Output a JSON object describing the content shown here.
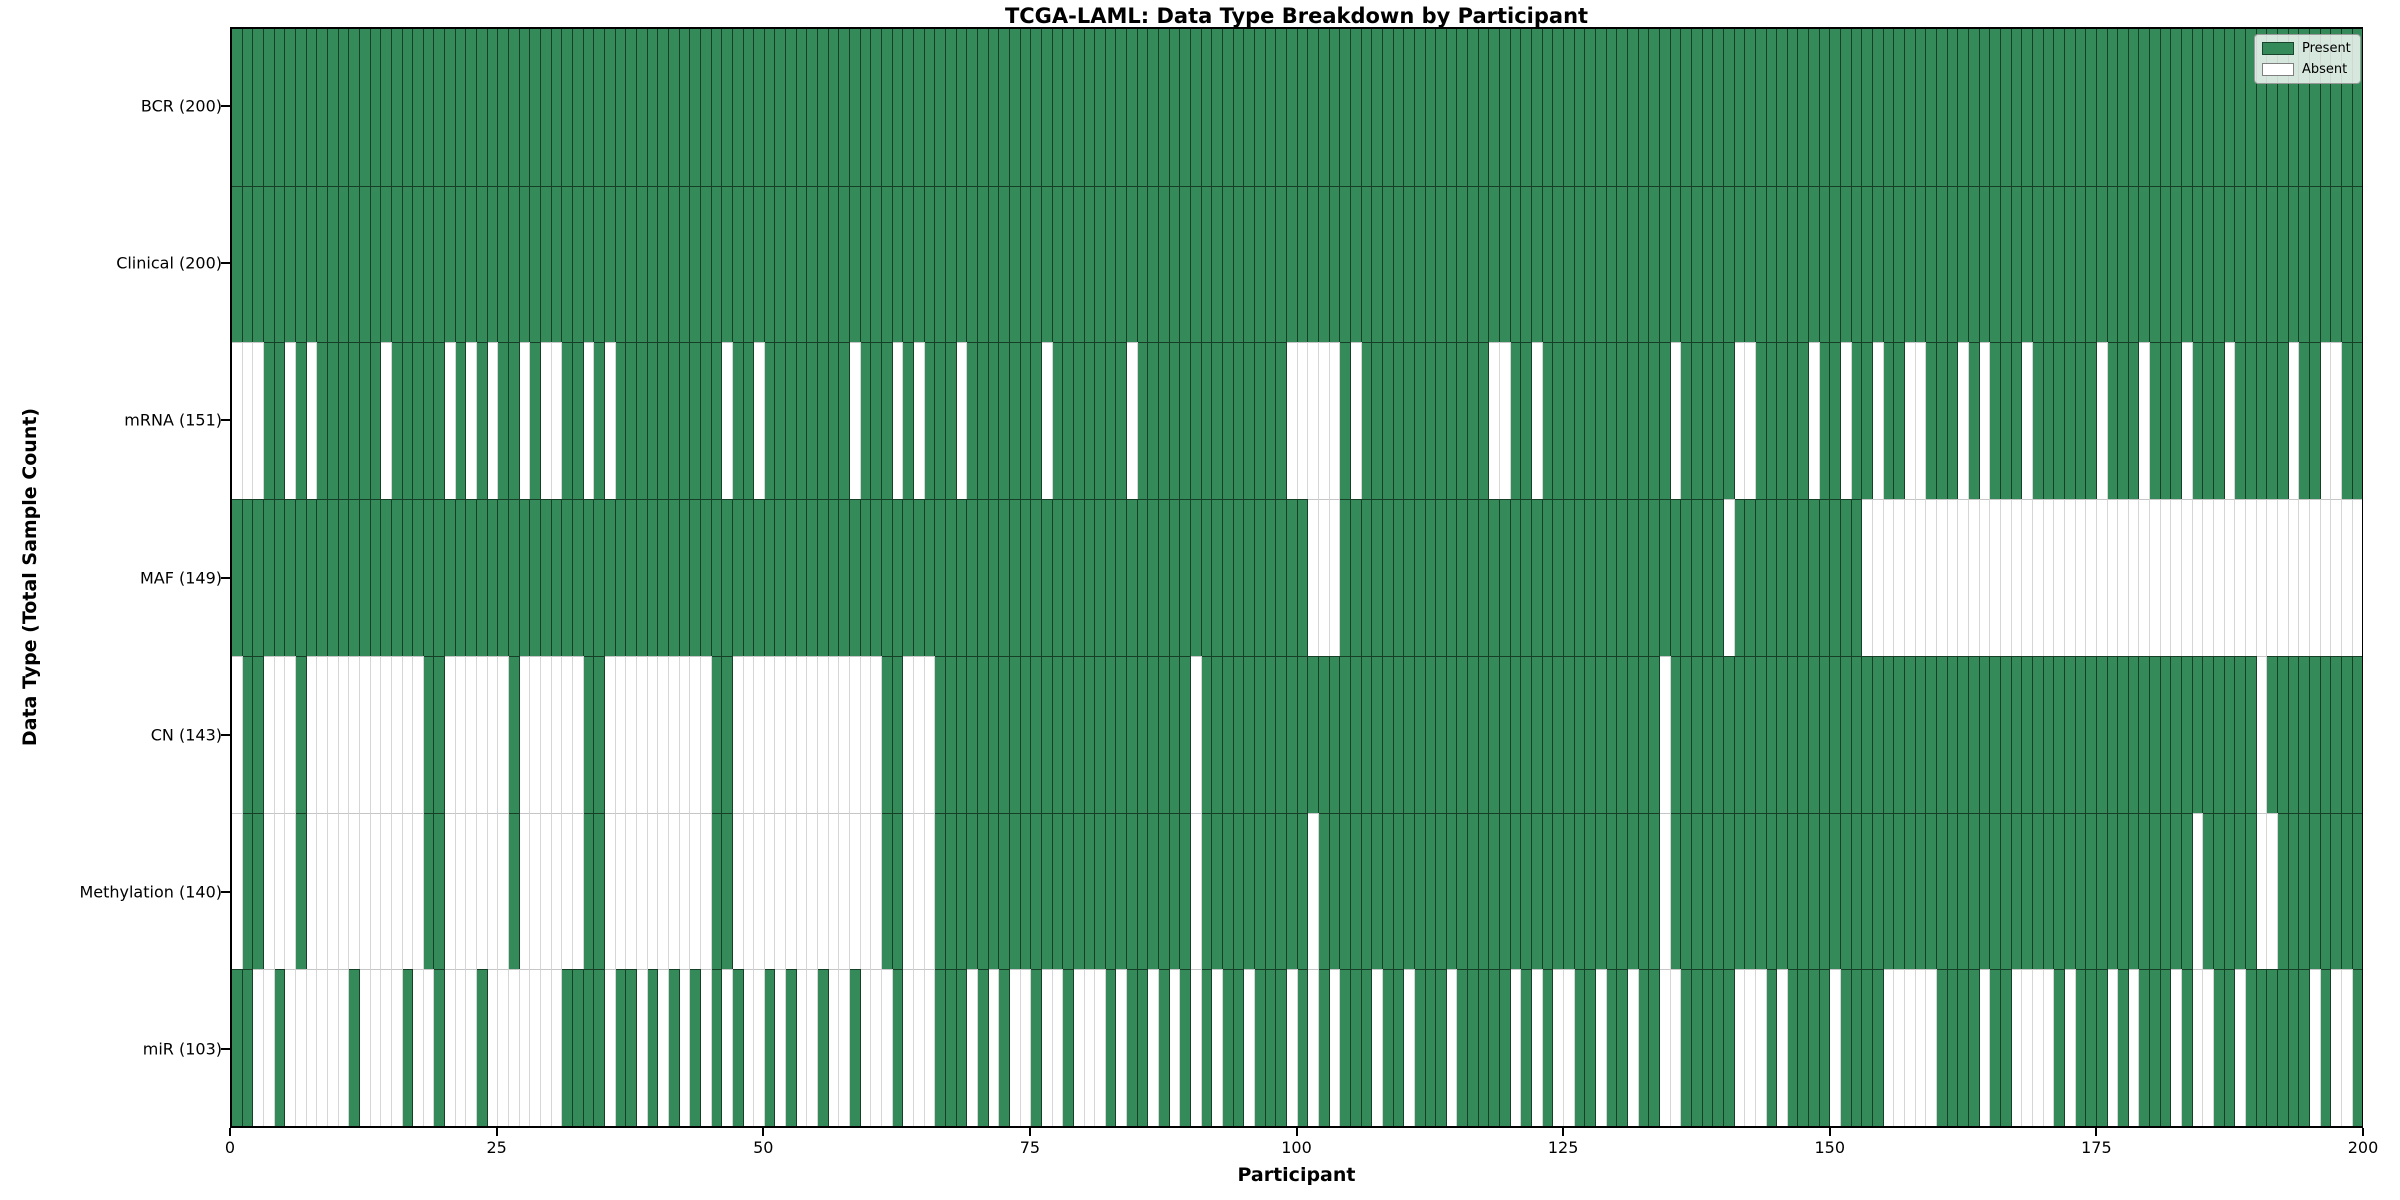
{
  "title": "TCGA-LAML: Data Type Breakdown by Participant",
  "colors": {
    "present": "#348a58",
    "absent": "#ffffff"
  },
  "legend": {
    "entries": [
      {
        "label": "Present",
        "swatch": "present"
      },
      {
        "label": "Absent",
        "swatch": "absent"
      }
    ]
  },
  "chart_data": {
    "type": "heatmap",
    "title": "TCGA-LAML: Data Type Breakdown by Participant",
    "xlabel": "Participant",
    "ylabel": "Data Type (Total Sample Count)",
    "x_range": [
      0,
      200
    ],
    "x_ticks": [
      0,
      25,
      50,
      75,
      100,
      125,
      150,
      175,
      200
    ],
    "n_participants": 200,
    "cell_values": {
      "present": 1,
      "absent": 0
    },
    "rows": [
      {
        "label": "BCR (200)",
        "name": "bcr",
        "present_count": 200,
        "absent_indices": []
      },
      {
        "label": "Clinical (200)",
        "name": "clinical",
        "present_count": 200,
        "absent_indices": []
      },
      {
        "label": "mRNA (151)",
        "name": "mrna",
        "present_count": 151,
        "absent_indices": [
          0,
          1,
          2,
          5,
          7,
          14,
          20,
          22,
          24,
          27,
          29,
          30,
          33,
          35,
          46,
          49,
          58,
          62,
          64,
          68,
          76,
          84,
          99,
          100,
          101,
          102,
          103,
          105,
          118,
          119,
          122,
          135,
          141,
          142,
          148,
          151,
          154,
          157,
          158,
          162,
          164,
          168,
          175,
          179,
          183,
          187,
          193,
          196,
          197
        ]
      },
      {
        "label": "MAF (149)",
        "name": "maf",
        "present_count": 149,
        "absent_indices": [
          101,
          102,
          103,
          140,
          153,
          154,
          155,
          156,
          157,
          158,
          159,
          160,
          161,
          162,
          163,
          164,
          165,
          166,
          167,
          168,
          169,
          170,
          171,
          172,
          173,
          174,
          175,
          176,
          177,
          178,
          179,
          180,
          181,
          182,
          183,
          184,
          185,
          186,
          187,
          188,
          189,
          190,
          191,
          192,
          193,
          194,
          195,
          196,
          197,
          198,
          199
        ]
      },
      {
        "label": "CN (143)",
        "name": "cn",
        "present_count": 143,
        "absent_indices": [
          0,
          3,
          4,
          5,
          7,
          8,
          9,
          10,
          11,
          12,
          13,
          14,
          15,
          16,
          17,
          20,
          21,
          22,
          23,
          24,
          25,
          27,
          28,
          29,
          30,
          31,
          32,
          35,
          36,
          37,
          38,
          39,
          40,
          41,
          42,
          43,
          44,
          47,
          48,
          49,
          50,
          51,
          52,
          53,
          54,
          55,
          56,
          57,
          58,
          59,
          60,
          63,
          64,
          65,
          90,
          134,
          190
        ]
      },
      {
        "label": "Methylation (140)",
        "name": "methylation",
        "present_count": 140,
        "absent_indices": [
          0,
          3,
          4,
          5,
          7,
          8,
          9,
          10,
          11,
          12,
          13,
          14,
          15,
          16,
          17,
          20,
          21,
          22,
          23,
          24,
          25,
          27,
          28,
          29,
          30,
          31,
          32,
          35,
          36,
          37,
          38,
          39,
          40,
          41,
          42,
          43,
          44,
          47,
          48,
          49,
          50,
          51,
          52,
          53,
          54,
          55,
          56,
          57,
          58,
          59,
          60,
          63,
          64,
          65,
          90,
          101,
          134,
          184,
          190,
          191
        ]
      },
      {
        "label": "miR (103)",
        "name": "mir",
        "present_count": 103,
        "absent_indices": [
          2,
          3,
          5,
          6,
          7,
          8,
          9,
          10,
          12,
          13,
          14,
          15,
          17,
          18,
          20,
          21,
          22,
          24,
          25,
          26,
          27,
          28,
          29,
          30,
          35,
          38,
          40,
          42,
          44,
          46,
          48,
          49,
          51,
          53,
          54,
          56,
          57,
          59,
          60,
          61,
          63,
          64,
          65,
          69,
          71,
          73,
          74,
          76,
          77,
          79,
          80,
          81,
          83,
          86,
          88,
          90,
          92,
          95,
          99,
          101,
          103,
          107,
          110,
          114,
          120,
          122,
          124,
          125,
          128,
          131,
          134,
          135,
          141,
          142,
          143,
          145,
          150,
          155,
          156,
          157,
          158,
          159,
          164,
          167,
          168,
          169,
          170,
          172,
          176,
          178,
          182,
          184,
          185,
          188,
          195,
          197,
          198
        ]
      }
    ]
  }
}
